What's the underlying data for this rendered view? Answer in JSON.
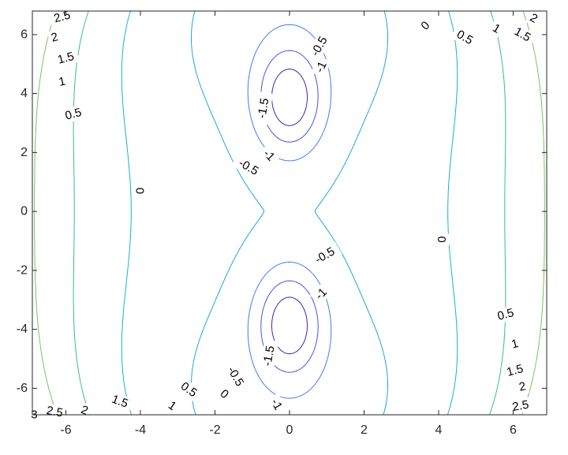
{
  "chart_data": {
    "type": "contour",
    "title": "",
    "xlabel": "",
    "ylabel": "",
    "xlim": [
      -6.9,
      6.9
    ],
    "ylim": [
      -6.9,
      6.8
    ],
    "x_ticks": [
      -6,
      -4,
      -2,
      0,
      2,
      4,
      6
    ],
    "y_ticks": [
      -6,
      -4,
      -2,
      0,
      2,
      4,
      6
    ],
    "x_tick_labels": [
      "-6",
      "-4",
      "-2",
      "0",
      "2",
      "4",
      "6"
    ],
    "y_tick_labels": [
      "-6",
      "-4",
      "-2",
      "0",
      "2",
      "4",
      "6"
    ],
    "grid": false,
    "box": true,
    "colormap": "parula",
    "levels": [
      -1.5,
      -1,
      -0.5,
      0,
      0.5,
      1,
      1.5,
      2,
      2.5,
      3
    ],
    "level_colors": {
      "-1.5": "#3e26a8",
      "-1": "#4454e0",
      "-0.5": "#3f7df5",
      "0": "#20a4e0",
      "0.5": "#15b6c4",
      "1": "#2fbf99",
      "1.5": "#78c45c",
      "2": "#b8c42a",
      "2.5": "#f0b72a",
      "3": "#f9d020"
    },
    "contour_labels": [
      {
        "text": "2.5",
        "x": -6.1,
        "y": 6.6,
        "angle": -15
      },
      {
        "text": "2",
        "x": -6.3,
        "y": 5.9,
        "angle": -15
      },
      {
        "text": "1.5",
        "x": -6.0,
        "y": 5.2,
        "angle": -15
      },
      {
        "text": "1",
        "x": -6.1,
        "y": 4.4,
        "angle": -12
      },
      {
        "text": "0.5",
        "x": -5.8,
        "y": 3.3,
        "angle": -15
      },
      {
        "text": "0",
        "x": 3.65,
        "y": 6.3,
        "angle": -45
      },
      {
        "text": "0.5",
        "x": 4.7,
        "y": 5.9,
        "angle": 30
      },
      {
        "text": "1",
        "x": 5.55,
        "y": 6.2,
        "angle": 30
      },
      {
        "text": "1.5",
        "x": 6.25,
        "y": 6.0,
        "angle": 30
      },
      {
        "text": "2",
        "x": 6.55,
        "y": 6.55,
        "angle": 30
      },
      {
        "text": "-0.5",
        "x": 0.8,
        "y": 5.6,
        "angle": -60
      },
      {
        "text": "-1",
        "x": 0.85,
        "y": 4.9,
        "angle": -65
      },
      {
        "text": "-1.5",
        "x": -0.7,
        "y": 3.5,
        "angle": -80
      },
      {
        "text": "-1",
        "x": -0.55,
        "y": 1.9,
        "angle": 45
      },
      {
        "text": "-0.5",
        "x": -1.1,
        "y": 1.5,
        "angle": 30
      },
      {
        "text": "0",
        "x": -4.0,
        "y": 0.7,
        "angle": -90
      },
      {
        "text": "0",
        "x": 4.1,
        "y": -0.95,
        "angle": -90
      },
      {
        "text": "-0.5",
        "x": 0.95,
        "y": -1.5,
        "angle": -30
      },
      {
        "text": "-1",
        "x": 0.85,
        "y": -2.8,
        "angle": -45
      },
      {
        "text": "-1.5",
        "x": -0.55,
        "y": -4.9,
        "angle": -80
      },
      {
        "text": "-0.5",
        "x": -1.45,
        "y": -5.6,
        "angle": 60
      },
      {
        "text": "-1",
        "x": -0.35,
        "y": -6.55,
        "angle": 60
      },
      {
        "text": "0.5",
        "x": -2.7,
        "y": -6.05,
        "angle": 35
      },
      {
        "text": "0",
        "x": -1.75,
        "y": -6.2,
        "angle": 40
      },
      {
        "text": "1",
        "x": -3.15,
        "y": -6.6,
        "angle": 35
      },
      {
        "text": "1.5",
        "x": -4.55,
        "y": -6.45,
        "angle": 20
      },
      {
        "text": "2",
        "x": -5.5,
        "y": -6.75,
        "angle": 20
      },
      {
        "text": "2.5",
        "x": -6.3,
        "y": -6.8,
        "angle": 10
      },
      {
        "text": "3",
        "x": -6.85,
        "y": -6.9,
        "angle": 0
      },
      {
        "text": "0.5",
        "x": 5.8,
        "y": -3.5,
        "angle": -15
      },
      {
        "text": "1",
        "x": 6.05,
        "y": -4.5,
        "angle": -15
      },
      {
        "text": "1.5",
        "x": 6.05,
        "y": -5.4,
        "angle": -15
      },
      {
        "text": "2",
        "x": 6.25,
        "y": -5.95,
        "angle": -12
      },
      {
        "text": "2.5",
        "x": 6.2,
        "y": -6.6,
        "angle": -10
      }
    ]
  }
}
